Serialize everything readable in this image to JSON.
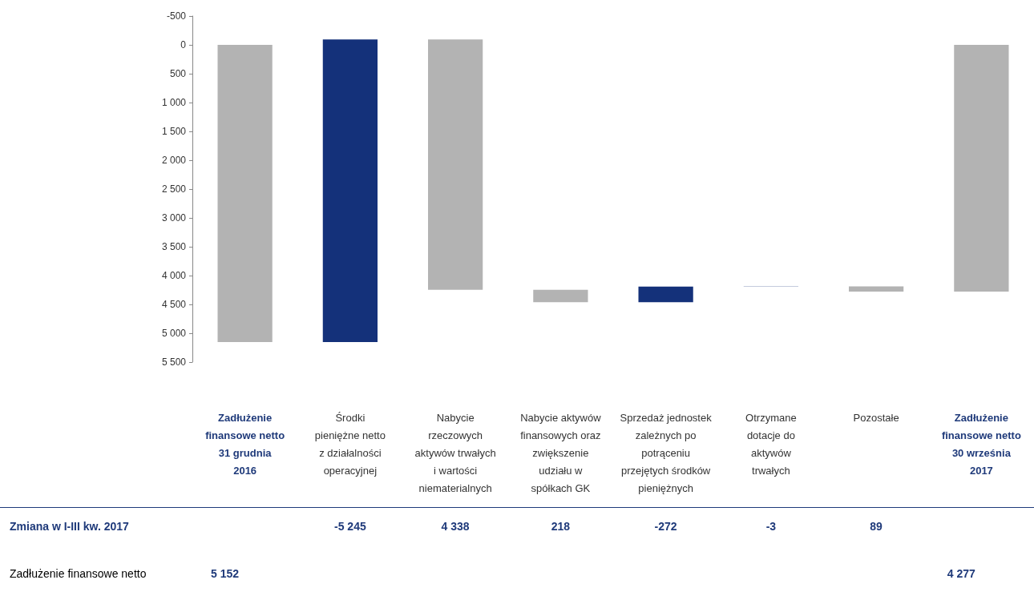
{
  "chart_data": {
    "type": "bar",
    "categories": [
      "Zadłużenie\nfinansowe netto\n31 grudnia\n2016",
      "Środki\npieniężne netto\nz działalności\noperacyjnej",
      "Nabycie\nrzeczowych\naktywów trwałych\ni wartości\nniematerialnych",
      "Nabycie aktywów\nfinansowych oraz\nzwiększenie\nudziału w\nspółkach GK",
      "Sprzedaż jednostek\nzależnych po\npotrąceniu\nprzejętych środków\npieniężnych",
      "Otrzymane\ndotacje do\naktywów\ntrwałych",
      "Pozostałe",
      "Zadłużenie\nfinansowe netto\n30 września\n2017"
    ],
    "series": [
      {
        "base": [
          null,
          5152,
          -93,
          4245,
          4463,
          4191,
          4188,
          null
        ],
        "colors": [
          null,
          "#14317a",
          "#b3b3b3",
          "#b3b3b3",
          "#14317a",
          "#14317a",
          "#b3b3b3",
          null
        ],
        "values": [
          null,
          -5245,
          4338,
          218,
          -272,
          -3,
          89,
          null
        ],
        "value_labels": [
          null,
          "-5 245",
          "4 338",
          "218",
          "-272",
          "-3",
          "89",
          null
        ]
      },
      {
        "base": [
          0,
          null,
          null,
          null,
          null,
          null,
          null,
          0
        ],
        "color": "#b3b3b3",
        "values": [
          5152,
          null,
          null,
          null,
          null,
          null,
          null,
          4277
        ],
        "value_labels": [
          "5 152",
          null,
          null,
          null,
          null,
          null,
          null,
          "4 277"
        ]
      }
    ],
    "ylim": [
      5500,
      -500
    ],
    "yticks": [
      {
        "value": -500,
        "label": "-500"
      },
      0,
      {
        "value": 500,
        "label": "500"
      },
      {
        "value": 1000,
        "label": "1 000"
      },
      {
        "value": 1500,
        "label": "1 500"
      },
      {
        "value": 2000,
        "label": "2 000"
      },
      {
        "value": 2500,
        "label": "2 500"
      },
      {
        "value": 3000,
        "label": "3 000"
      },
      {
        "value": 3500,
        "label": "3 500"
      },
      {
        "value": 4000,
        "label": "4 000"
      },
      {
        "value": 4500,
        "label": "4 500"
      },
      {
        "value": 5000,
        "label": "5 000"
      },
      {
        "value": 5500,
        "label": "5 500"
      }
    ],
    "annotations": [
      "Zmiana w I-III kw. 2017",
      "Zadłużenie finansowe netto"
    ],
    "grid": false
  }
}
